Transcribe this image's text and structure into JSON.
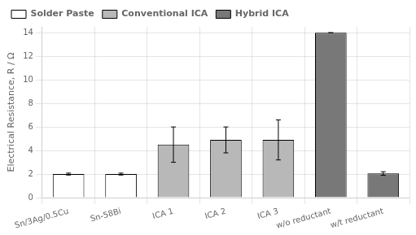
{
  "chart_data": {
    "type": "bar",
    "ylabel": "Electrical Resistance, R / Ω",
    "categories": [
      "Sn/3Ag/0.5Cu",
      "Sn-58Bi",
      "ICA 1",
      "ICA 2",
      "ICA 3",
      "w/o reductant",
      "w/t reductant"
    ],
    "series": [
      {
        "name": "Solder Paste",
        "color": "#ffffff",
        "values": [
          2.0,
          2.0,
          null,
          null,
          null,
          null,
          null
        ],
        "errors": [
          0.08,
          0.08,
          null,
          null,
          null,
          null,
          null
        ]
      },
      {
        "name": "Conventional ICA",
        "color": "#b8b8b8",
        "values": [
          null,
          null,
          4.5,
          4.9,
          4.9,
          null,
          null
        ],
        "errors": [
          null,
          null,
          1.5,
          1.1,
          1.7,
          null,
          null
        ]
      },
      {
        "name": "Hybrid ICA",
        "color": "#787878",
        "values": [
          null,
          null,
          null,
          null,
          null,
          14.0,
          2.05
        ],
        "errors": [
          null,
          null,
          null,
          null,
          null,
          0.0,
          0.15
        ]
      }
    ],
    "ylim": [
      0,
      14.5
    ],
    "yticks": [
      0,
      2,
      4,
      6,
      8,
      10,
      12,
      14
    ],
    "grid": true,
    "legend": "upper left"
  }
}
